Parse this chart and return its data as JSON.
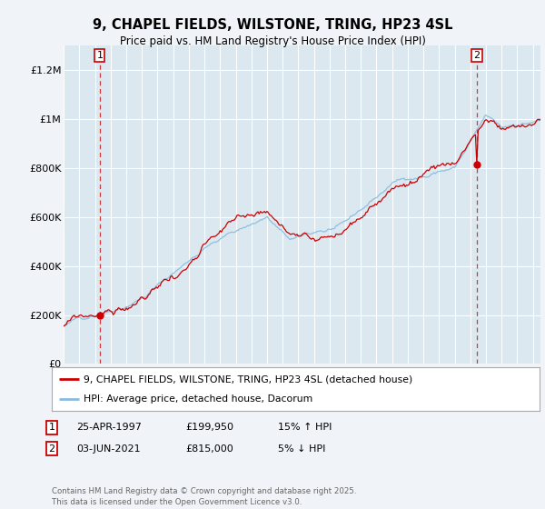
{
  "title": "9, CHAPEL FIELDS, WILSTONE, TRING, HP23 4SL",
  "subtitle": "Price paid vs. HM Land Registry's House Price Index (HPI)",
  "ylim": [
    0,
    1300000
  ],
  "yticks": [
    0,
    200000,
    400000,
    600000,
    800000,
    1000000,
    1200000
  ],
  "ytick_labels": [
    "£0",
    "£200K",
    "£400K",
    "£600K",
    "£800K",
    "£1M",
    "£1.2M"
  ],
  "legend_line1": "9, CHAPEL FIELDS, WILSTONE, TRING, HP23 4SL (detached house)",
  "legend_line2": "HPI: Average price, detached house, Dacorum",
  "purchase1_date": "25-APR-1997",
  "purchase1_price": "£199,950",
  "purchase1_hpi": "15% ↑ HPI",
  "purchase2_date": "03-JUN-2021",
  "purchase2_price": "£815,000",
  "purchase2_hpi": "5% ↓ HPI",
  "footer": "Contains HM Land Registry data © Crown copyright and database right 2025.\nThis data is licensed under the Open Government Licence v3.0.",
  "line_color_property": "#cc0000",
  "line_color_hpi": "#88bbdd",
  "marker_color": "#cc0000",
  "dashed_line_color": "#cc0000",
  "background_color": "#f0f4f8",
  "plot_bg_color": "#dce8f0",
  "grid_color": "#ffffff",
  "purchase1_x": 1997.31,
  "purchase1_y": 199950,
  "purchase2_x": 2021.42,
  "purchase2_y": 815000,
  "xmin": 1995,
  "xmax": 2025.5
}
